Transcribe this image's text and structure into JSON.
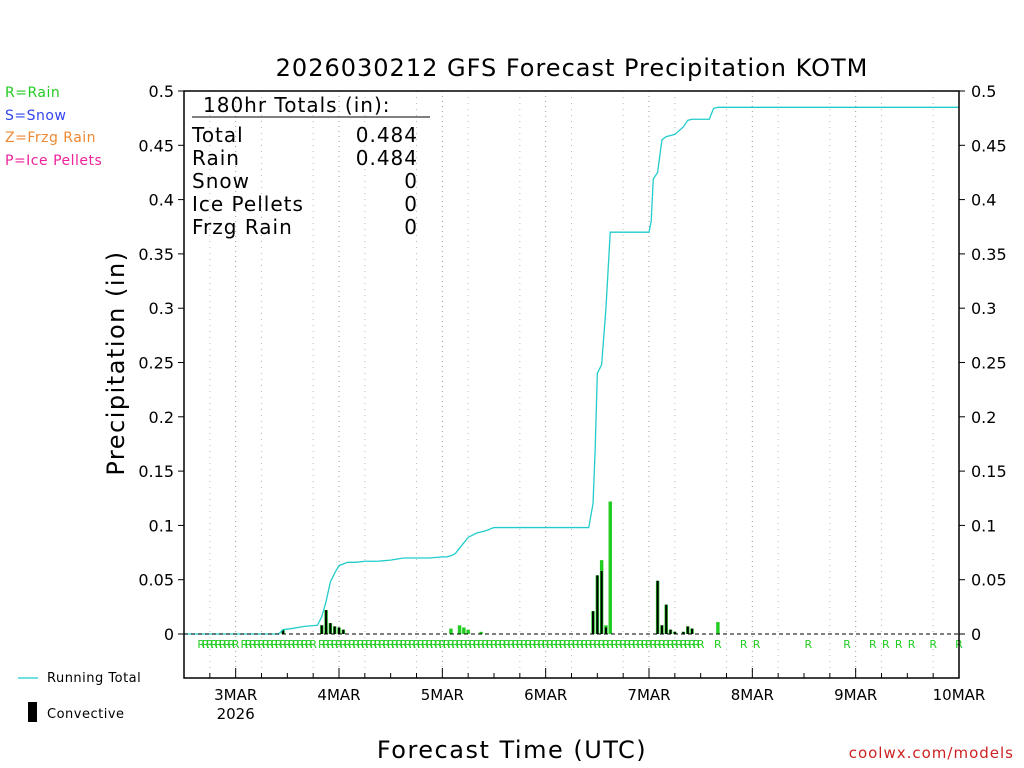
{
  "chart_data": {
    "type": "bar",
    "title": "2026030212 GFS Forecast Precipitation KOTM",
    "xlabel": "Forecast Time (UTC)",
    "ylabel": "Precipitation (in)",
    "ylim": [
      0,
      0.5
    ],
    "yticks": [
      "0",
      "0.05",
      "0.1",
      "0.15",
      "0.2",
      "0.25",
      "0.3",
      "0.35",
      "0.4",
      "0.45",
      "0.5"
    ],
    "xlim_hours": [
      0,
      180
    ],
    "xticks": [
      {
        "hour": 12,
        "label": "3MAR",
        "sublabel": "2026"
      },
      {
        "hour": 36,
        "label": "4MAR",
        "sublabel": ""
      },
      {
        "hour": 60,
        "label": "5MAR",
        "sublabel": ""
      },
      {
        "hour": 84,
        "label": "6MAR",
        "sublabel": ""
      },
      {
        "hour": 108,
        "label": "7MAR",
        "sublabel": ""
      },
      {
        "hour": 132,
        "label": "8MAR",
        "sublabel": ""
      },
      {
        "hour": 156,
        "label": "9MAR",
        "sublabel": ""
      },
      {
        "hour": 180,
        "label": "10MAR",
        "sublabel": ""
      }
    ],
    "totals": {
      "header": "180hr Totals (in):",
      "rows": [
        {
          "label": "Total",
          "value": "0.484"
        },
        {
          "label": "Rain",
          "value": "0.484"
        },
        {
          "label": "Snow",
          "value": "0"
        },
        {
          "label": "Ice Pellets",
          "value": "0"
        },
        {
          "label": "Frzg Rain",
          "value": "0"
        }
      ]
    },
    "ptype_legend": [
      {
        "text": "R=Rain",
        "color": "#22cc22"
      },
      {
        "text": "S=Snow",
        "color": "#3344ee"
      },
      {
        "text": "Z=Frzg Rain",
        "color": "#ee8833"
      },
      {
        "text": "P=Ice Pellets",
        "color": "#ee2299"
      }
    ],
    "series_legend": [
      {
        "name": "Running Total",
        "kind": "line",
        "color": "#22cccc"
      },
      {
        "name": "Convective",
        "kind": "bar",
        "color": "#000000"
      }
    ],
    "bar_colors": {
      "total": "#22cc22",
      "convective": "#000000"
    },
    "series": [
      {
        "name": "Hourly Precip",
        "points": [
          {
            "h": 23.0,
            "total": 0.004,
            "conv": 0.004
          },
          {
            "h": 32.0,
            "total": 0.008,
            "conv": 0.008
          },
          {
            "h": 33.0,
            "total": 0.022,
            "conv": 0.022
          },
          {
            "h": 34.0,
            "total": 0.01,
            "conv": 0.01
          },
          {
            "h": 35.0,
            "total": 0.007,
            "conv": 0.007
          },
          {
            "h": 36.0,
            "total": 0.006,
            "conv": 0.006
          },
          {
            "h": 37.0,
            "total": 0.004,
            "conv": 0.004
          },
          {
            "h": 62.0,
            "total": 0.005,
            "conv": 0.0
          },
          {
            "h": 64.0,
            "total": 0.008,
            "conv": 0.0
          },
          {
            "h": 65.0,
            "total": 0.006,
            "conv": 0.0
          },
          {
            "h": 66.0,
            "total": 0.004,
            "conv": 0.0
          },
          {
            "h": 69.0,
            "total": 0.002,
            "conv": 0.0
          },
          {
            "h": 95.0,
            "total": 0.021,
            "conv": 0.021
          },
          {
            "h": 96.0,
            "total": 0.054,
            "conv": 0.054
          },
          {
            "h": 97.0,
            "total": 0.068,
            "conv": 0.058
          },
          {
            "h": 98.0,
            "total": 0.008,
            "conv": 0.006
          },
          {
            "h": 99.0,
            "total": 0.122,
            "conv": 0.0
          },
          {
            "h": 110.0,
            "total": 0.049,
            "conv": 0.049
          },
          {
            "h": 111.0,
            "total": 0.008,
            "conv": 0.008
          },
          {
            "h": 112.0,
            "total": 0.027,
            "conv": 0.027
          },
          {
            "h": 113.0,
            "total": 0.004,
            "conv": 0.004
          },
          {
            "h": 114.0,
            "total": 0.002,
            "conv": 0.002
          },
          {
            "h": 116.0,
            "total": 0.002,
            "conv": 0.002
          },
          {
            "h": 117.0,
            "total": 0.007,
            "conv": 0.007
          },
          {
            "h": 118.0,
            "total": 0.005,
            "conv": 0.005
          },
          {
            "h": 124.0,
            "total": 0.011,
            "conv": 0.0
          }
        ]
      },
      {
        "name": "Running Total",
        "x": [
          0,
          22,
          23,
          25,
          28,
          31,
          32,
          33,
          34,
          35,
          36,
          38,
          40,
          42,
          45,
          48,
          51,
          54,
          57,
          60,
          61,
          62,
          63,
          64,
          66,
          68,
          70,
          72,
          80,
          94,
          95,
          95.5,
          96,
          97,
          98,
          99,
          100,
          108,
          108.5,
          109,
          110,
          111,
          112,
          114,
          116,
          117,
          118,
          120,
          122,
          123,
          124,
          180
        ],
        "y": [
          0,
          0,
          0.004,
          0.005,
          0.007,
          0.008,
          0.016,
          0.03,
          0.048,
          0.056,
          0.063,
          0.066,
          0.066,
          0.067,
          0.067,
          0.068,
          0.07,
          0.07,
          0.07,
          0.071,
          0.071,
          0.072,
          0.074,
          0.079,
          0.089,
          0.093,
          0.095,
          0.098,
          0.098,
          0.098,
          0.12,
          0.17,
          0.24,
          0.248,
          0.3,
          0.37,
          0.37,
          0.37,
          0.38,
          0.419,
          0.425,
          0.455,
          0.458,
          0.46,
          0.467,
          0.473,
          0.474,
          0.474,
          0.474,
          0.484,
          0.485,
          0.485
        ]
      }
    ],
    "ptype_markers": {
      "letter": "R",
      "color": "#22cc22",
      "hours": [
        4,
        5,
        6,
        7,
        8,
        9,
        10,
        11,
        12,
        14,
        15,
        16,
        17,
        18,
        19,
        20,
        21,
        22,
        23,
        24,
        25,
        26,
        27,
        28,
        29,
        30,
        32,
        33,
        34,
        35,
        36,
        37,
        38,
        39,
        40,
        41,
        42,
        43,
        44,
        45,
        46,
        47,
        48,
        49,
        50,
        51,
        52,
        53,
        54,
        55,
        56,
        57,
        58,
        59,
        60,
        61,
        62,
        63,
        64,
        65,
        66,
        67,
        68,
        69,
        70,
        71,
        72,
        73,
        74,
        75,
        76,
        77,
        78,
        79,
        80,
        81,
        82,
        83,
        84,
        85,
        86,
        87,
        88,
        89,
        90,
        91,
        92,
        93,
        94,
        95,
        96,
        97,
        98,
        99,
        100,
        101,
        102,
        103,
        104,
        105,
        106,
        107,
        108,
        109,
        110,
        111,
        112,
        113,
        114,
        115,
        116,
        117,
        118,
        119,
        120,
        124,
        130,
        133,
        145,
        154,
        160,
        163,
        166,
        169,
        174,
        180
      ]
    }
  },
  "footer": {
    "watermark": "coolwx.com/models"
  }
}
